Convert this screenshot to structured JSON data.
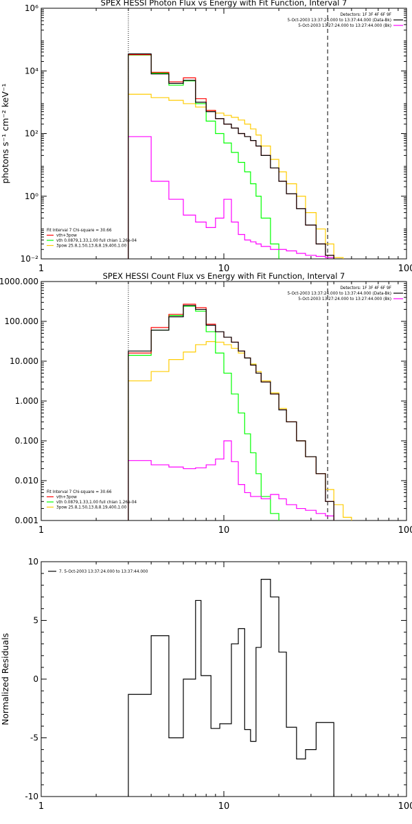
{
  "chart_data": [
    {
      "type": "line",
      "title": "SPEX HESSI Photon Flux vs Energy with Fit Function, Interval 7",
      "xlabel": "",
      "ylabel": "photons s⁻¹ cm⁻² keV⁻¹",
      "xscale": "log",
      "yscale": "log",
      "xlim": [
        1,
        100
      ],
      "ylim": [
        0.01,
        1000000
      ],
      "xtick_labels": [
        "1",
        "10",
        "100"
      ],
      "ytick_labels": [
        "10⁻²",
        "10⁰",
        "10²",
        "10⁴",
        "10⁶"
      ],
      "ytick_values": [
        0.01,
        1,
        100,
        10000,
        1000000
      ],
      "grid": false,
      "vlines": [
        {
          "x": 3,
          "style": "dotted"
        },
        {
          "x": 37,
          "style": "dashed"
        }
      ],
      "info_text": [
        "Detectors: 1F 3F 4F 6F 9F",
        "5-Oct-2003 13:37:24.000 to 13:37:44.000 (Data-Bk)",
        "5-Oct-2003 13:27:24.000 to 13:27:44.000 (Bk)"
      ],
      "info_placement": "top-right",
      "fit_text": [
        "Fit Interval 7   Chi-square = 30.66",
        "vth+3pow",
        "vth 0.0879,1.33,1.00  full chian 1.26e-04",
        "3pow 25.8,1.50,13.8,8.19,400,1.00"
      ],
      "legend_placement": "bottom-left",
      "edges": [
        3,
        4,
        5,
        6,
        7,
        8,
        9,
        10,
        11,
        12,
        13,
        14,
        15,
        16,
        18,
        20,
        22,
        25,
        28,
        32,
        36,
        40,
        45
      ],
      "series": [
        {
          "name": "Data-Bk",
          "color": "#000000",
          "values": [
            35000,
            8000,
            4000,
            5000,
            1000,
            500,
            300,
            200,
            150,
            100,
            80,
            60,
            40,
            20,
            8,
            3,
            1.2,
            0.4,
            0.12,
            0.03,
            0.013
          ]
        },
        {
          "name": "Bk",
          "color": "#ff00ff",
          "values": [
            80,
            3,
            0.8,
            0.25,
            0.15,
            0.1,
            0.2,
            0.8,
            0.15,
            0.06,
            0.04,
            0.035,
            0.03,
            0.025,
            0.02,
            0.02,
            0.018,
            0.015,
            0.013,
            0.012,
            0.011
          ]
        },
        {
          "name": "vth+3pow",
          "color": "#ff0000",
          "values": [
            33000,
            9000,
            4500,
            6000,
            1300,
            550,
            300,
            200,
            150,
            100,
            80,
            60,
            40,
            20,
            8,
            3,
            1.2,
            0.4,
            0.12,
            0.03,
            0.013
          ]
        },
        {
          "name": "vth 0.0879,1.33,1.00  full chian 1.26e-04",
          "color": "#00ff00",
          "values": [
            32000,
            8500,
            3500,
            4800,
            900,
            250,
            100,
            50,
            25,
            12,
            6,
            2.5,
            1,
            0.2,
            0.03
          ]
        },
        {
          "name": "3pow 25.8,1.50,13.8,8.19,400,1.00",
          "color": "#ffcc00",
          "values": [
            1800,
            1400,
            1150,
            900,
            700,
            550,
            450,
            380,
            330,
            270,
            200,
            140,
            90,
            40,
            15,
            6,
            2.5,
            1,
            0.3,
            0.09,
            0.03,
            0.011
          ]
        }
      ]
    },
    {
      "type": "line",
      "title": "SPEX HESSI Count Flux vs Energy with Fit Function, Interval 7",
      "xlabel": "",
      "ylabel": "",
      "xscale": "log",
      "yscale": "log",
      "xlim": [
        1,
        100
      ],
      "ylim": [
        0.001,
        1000
      ],
      "xtick_labels": [
        "1",
        "10",
        "100"
      ],
      "ytick_labels": [
        "0.001",
        "0.010",
        "0.100",
        "1.000",
        "10.000",
        "100.000",
        "1000.000"
      ],
      "ytick_values": [
        0.001,
        0.01,
        0.1,
        1,
        10,
        100,
        1000
      ],
      "grid": false,
      "vlines": [
        {
          "x": 3,
          "style": "dotted"
        },
        {
          "x": 37,
          "style": "dashed"
        }
      ],
      "info_text": [
        "Detectors: 1F 3F 4F 6F 9F",
        "5-Oct-2003 13:37:24.000 to 13:37:44.000 (Data-Bk)",
        "5-Oct-2003 13:27:24.000 to 13:27:44.000 (Bk)"
      ],
      "info_placement": "top-right",
      "fit_text": [
        "Fit Interval 7   Chi-square = 30.66",
        "vth+3pow",
        "vth 0.0879,1.33,1.00  full chian 1.26e-04",
        "3pow 25.8,1.50,13.8,8.19,400,1.00"
      ],
      "legend_placement": "bottom-left",
      "edges": [
        3,
        4,
        5,
        6,
        7,
        8,
        9,
        10,
        11,
        12,
        13,
        14,
        15,
        16,
        18,
        20,
        22,
        25,
        28,
        32,
        36,
        40,
        45,
        50
      ],
      "series": [
        {
          "name": "Data-Bk",
          "color": "#000000",
          "values": [
            18,
            60,
            130,
            250,
            200,
            80,
            55,
            40,
            30,
            18,
            12,
            8,
            5,
            3,
            1.5,
            0.6,
            0.3,
            0.1,
            0.04,
            0.015,
            0.003
          ]
        },
        {
          "name": "Bk",
          "color": "#ff00ff",
          "values": [
            0.032,
            0.025,
            0.022,
            0.02,
            0.021,
            0.025,
            0.035,
            0.1,
            0.03,
            0.008,
            0.005,
            0.004,
            0.004,
            0.0035,
            0.0045,
            0.0035,
            0.0025,
            0.002,
            0.0018,
            0.0015,
            0.0013
          ]
        },
        {
          "name": "vth+3pow",
          "color": "#ff0000",
          "values": [
            16,
            70,
            150,
            270,
            220,
            85,
            55,
            40,
            30,
            18,
            12,
            8,
            5,
            3,
            1.5,
            0.6,
            0.3,
            0.1,
            0.04,
            0.015,
            0.003
          ]
        },
        {
          "name": "vth 0.0879,1.33,1.00  full chian 1.26e-04",
          "color": "#00ff00",
          "values": [
            14,
            60,
            140,
            240,
            180,
            55,
            16,
            5,
            1.5,
            0.5,
            0.15,
            0.05,
            0.015,
            0.004,
            0.0015
          ]
        },
        {
          "name": "3pow 25.8,1.50,13.8,8.19,400,1.00",
          "color": "#ffcc00",
          "values": [
            3.2,
            5.5,
            11,
            17,
            26,
            31,
            30,
            26,
            21,
            16,
            12,
            8.5,
            5.5,
            3.2,
            1.6,
            0.65,
            0.3,
            0.1,
            0.04,
            0.015,
            0.006,
            0.0025,
            0.0012
          ]
        }
      ]
    },
    {
      "type": "line",
      "title": "",
      "xlabel": "",
      "ylabel": "Normalized Residuals",
      "xscale": "log",
      "yscale": "linear",
      "xlim": [
        1,
        100
      ],
      "ylim": [
        -10,
        10
      ],
      "xtick_labels": [
        "1",
        "10",
        "100"
      ],
      "ytick_labels": [
        "-10",
        "-5",
        "0",
        "5",
        "10"
      ],
      "ytick_values": [
        -10,
        -5,
        0,
        5,
        10
      ],
      "grid": false,
      "legend_placement": "top-left",
      "edges": [
        3,
        3.5,
        4,
        4.5,
        5,
        5.5,
        6,
        6.5,
        7,
        7.5,
        8,
        8.5,
        9,
        9.5,
        10,
        11,
        12,
        13,
        14,
        15,
        16,
        18,
        20,
        22,
        25,
        28,
        32,
        36,
        40
      ],
      "series": [
        {
          "name": "7.  5-Oct-2003 13:37:24.000 to 13:37:44.000",
          "color": "#000000",
          "values": [
            -1.3,
            -1.3,
            3.7,
            3.7,
            -5,
            -5,
            0,
            0,
            6.7,
            0.3,
            0.3,
            -4.2,
            -4.2,
            -3.8,
            -3.8,
            3,
            4.3,
            -4.3,
            -5.3,
            2.7,
            8.5,
            7,
            2.3,
            -4.1,
            -6.8,
            -6,
            -3.7,
            -3.7
          ]
        }
      ]
    }
  ]
}
